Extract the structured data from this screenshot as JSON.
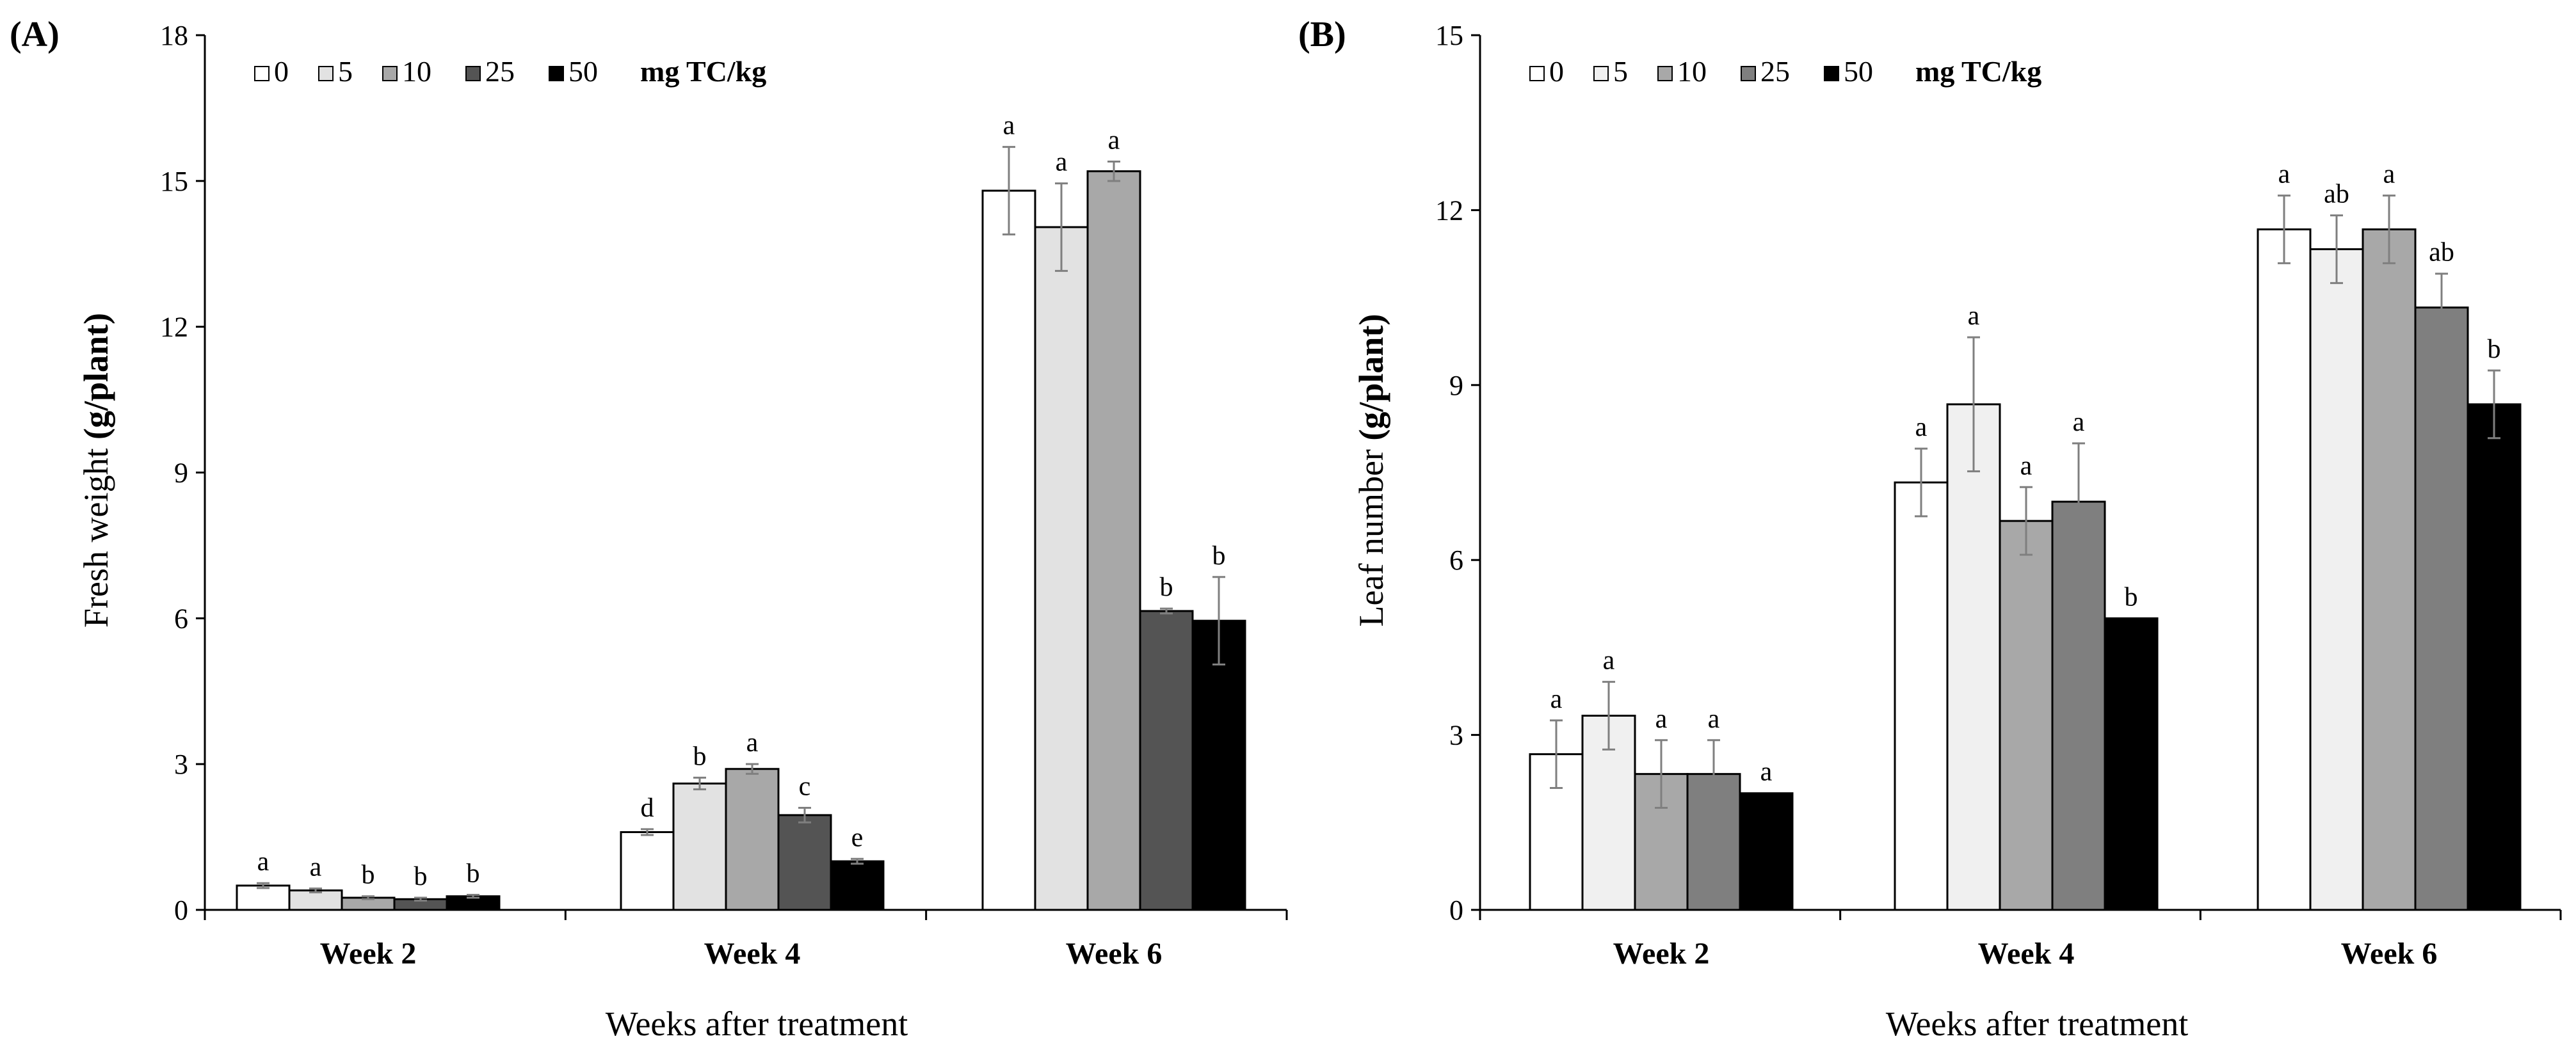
{
  "chart_data": [
    {
      "type": "bar",
      "panel_label": "(A)",
      "title": "",
      "xlabel": "Weeks after treatment",
      "ylabel_plain": "Fresh weight ",
      "ylabel_bold": "(g/plant)",
      "ylim": [
        0,
        18
      ],
      "yticks": [
        0,
        3,
        6,
        9,
        12,
        15,
        18
      ],
      "grid": false,
      "legend_position": "top-left",
      "legend_unit": "mg TC/kg",
      "categories": [
        "Week 2",
        "Week 4",
        "Week 6"
      ],
      "series": [
        {
          "name": "0",
          "color": "#ffffff",
          "values": [
            0.5,
            1.6,
            14.8
          ],
          "errors": [
            0.05,
            0.06,
            0.9
          ],
          "letters": [
            "a",
            "d",
            "a"
          ]
        },
        {
          "name": "5",
          "color": "#e2e2e2",
          "values": [
            0.4,
            2.6,
            14.05
          ],
          "errors": [
            0.04,
            0.12,
            0.9
          ],
          "letters": [
            "a",
            "b",
            "a"
          ]
        },
        {
          "name": "10",
          "color": "#a8a8a8",
          "values": [
            0.25,
            2.9,
            15.2
          ],
          "errors": [
            0.03,
            0.1,
            0.2
          ],
          "letters": [
            "b",
            "a",
            "a"
          ]
        },
        {
          "name": "25",
          "color": "#545454",
          "values": [
            0.22,
            1.95,
            6.15
          ],
          "errors": [
            0.03,
            0.15,
            0.05
          ],
          "letters": [
            "b",
            "c",
            "b"
          ]
        },
        {
          "name": "50",
          "color": "#000000",
          "values": [
            0.28,
            1.0,
            5.95
          ],
          "errors": [
            0.03,
            0.05,
            0.9
          ],
          "letters": [
            "b",
            "e",
            "b"
          ]
        }
      ]
    },
    {
      "type": "bar",
      "panel_label": "(B)",
      "title": "",
      "xlabel": "Weeks after treatment",
      "ylabel_plain": "Leaf number ",
      "ylabel_bold": "(g/plant)",
      "ylim": [
        0,
        15
      ],
      "yticks": [
        0,
        3,
        6,
        9,
        12,
        15
      ],
      "grid": false,
      "legend_position": "top-left",
      "legend_unit": "mg TC/kg",
      "categories": [
        "Week 2",
        "Week 4",
        "Week 6"
      ],
      "series": [
        {
          "name": "0",
          "color": "#ffffff",
          "values": [
            2.67,
            7.33,
            11.67
          ],
          "errors": [
            0.58,
            0.58,
            0.58
          ],
          "letters": [
            "a",
            "a",
            "a"
          ]
        },
        {
          "name": "5",
          "color": "#f0f0f0",
          "values": [
            3.33,
            8.67,
            11.33
          ],
          "errors": [
            0.58,
            1.15,
            0.58
          ],
          "letters": [
            "a",
            "a",
            "ab"
          ]
        },
        {
          "name": "10",
          "color": "#a8a8a8",
          "values": [
            2.33,
            6.67,
            11.67
          ],
          "errors": [
            0.58,
            0.58,
            0.58
          ],
          "letters": [
            "a",
            "a",
            "a"
          ]
        },
        {
          "name": "25",
          "color": "#7f7f7f",
          "values": [
            2.33,
            7.0,
            10.33
          ],
          "errors": [
            0.58,
            1.0,
            0.58
          ],
          "letters": [
            "a",
            "a",
            "ab"
          ]
        },
        {
          "name": "50",
          "color": "#000000",
          "values": [
            2.0,
            5.0,
            8.67
          ],
          "errors": [
            0.0,
            0.0,
            0.58
          ],
          "letters": [
            "a",
            "b",
            "b"
          ]
        }
      ]
    }
  ]
}
